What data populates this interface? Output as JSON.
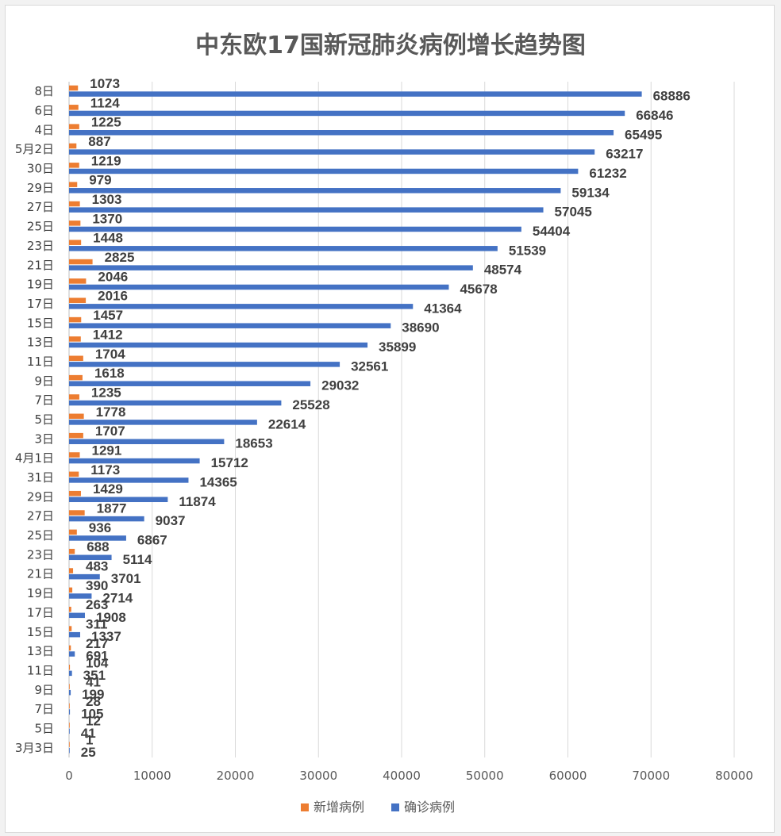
{
  "chart_data": {
    "type": "bar",
    "orientation": "horizontal",
    "title": "中东欧17国新冠肺炎病例增长趋势图",
    "categories": [
      "3月3日",
      "5日",
      "7日",
      "9日",
      "11日",
      "13日",
      "15日",
      "17日",
      "19日",
      "21日",
      "23日",
      "25日",
      "27日",
      "29日",
      "31日",
      "4月1日",
      "3日",
      "5日",
      "7日",
      "9日",
      "11日",
      "13日",
      "15日",
      "17日",
      "19日",
      "21日",
      "23日",
      "25日",
      "27日",
      "29日",
      "30日",
      "5月2日",
      "4日",
      "6日",
      "8日"
    ],
    "series": [
      {
        "name": "新增病例",
        "color": "#ED7D31",
        "values": [
          1,
          12,
          28,
          41,
          104,
          217,
          311,
          263,
          390,
          483,
          688,
          936,
          1877,
          1429,
          1173,
          1291,
          1707,
          1778,
          1235,
          1618,
          1704,
          1412,
          1457,
          2016,
          2046,
          2825,
          1448,
          1370,
          1303,
          979,
          1219,
          887,
          1225,
          1124,
          1073
        ]
      },
      {
        "name": "确诊病例",
        "color": "#4472C4",
        "values": [
          25,
          41,
          105,
          199,
          351,
          691,
          1337,
          1908,
          2714,
          3701,
          5114,
          6867,
          9037,
          11874,
          14365,
          15712,
          18653,
          22614,
          25528,
          29032,
          32561,
          35899,
          38690,
          41364,
          45678,
          48574,
          51539,
          54404,
          57045,
          59134,
          61232,
          63217,
          65495,
          66846,
          68886
        ]
      }
    ],
    "xlim": [
      0,
      80000
    ],
    "xticks": [
      "0",
      "10000",
      "20000",
      "30000",
      "40000",
      "50000",
      "60000",
      "70000",
      "80000"
    ],
    "grid": true,
    "legend": "bottom"
  }
}
